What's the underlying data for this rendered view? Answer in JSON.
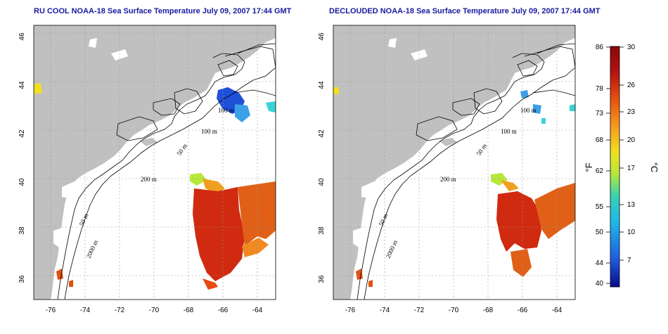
{
  "maps": [
    {
      "id": "left",
      "title": "RU COOL NOAA-18 Sea Surface Temperature July 09, 2007 17:44 GMT",
      "lat_ticks": [
        "46",
        "44",
        "42",
        "40",
        "38",
        "36"
      ],
      "lon_ticks": [
        "-76",
        "-74",
        "-72",
        "-70",
        "-68",
        "-66",
        "-64"
      ],
      "contour_labels": [
        "100 m",
        "100 m",
        "50 m",
        "200 m",
        "50 m",
        "2000 m"
      ]
    },
    {
      "id": "right",
      "title": "DECLOUDED NOAA-18 Sea Surface Temperature July 09, 2007 17:44 GMT",
      "lat_ticks": [
        "46",
        "44",
        "42",
        "40",
        "38",
        "36"
      ],
      "lon_ticks": [
        "-76",
        "-74",
        "-72",
        "-70",
        "-68",
        "-66",
        "-64"
      ],
      "contour_labels": [
        "100 m",
        "100 m",
        "50 m",
        "200 m",
        "50 m",
        "2000 m"
      ]
    }
  ],
  "colorbar": {
    "unit_f": "°F",
    "unit_c": "°C",
    "f_ticks": [
      "86",
      "78",
      "73",
      "68",
      "62",
      "55",
      "50",
      "44",
      "40"
    ],
    "c_ticks": [
      "30",
      "26",
      "23",
      "20",
      "17",
      "13",
      "10",
      "7"
    ],
    "colors": [
      "#0a0a8c",
      "#1f5fe0",
      "#1fb8e8",
      "#3ad2b0",
      "#b8e83a",
      "#f0e020",
      "#f5a020",
      "#e85010",
      "#b01010",
      "#8c0808"
    ]
  }
}
